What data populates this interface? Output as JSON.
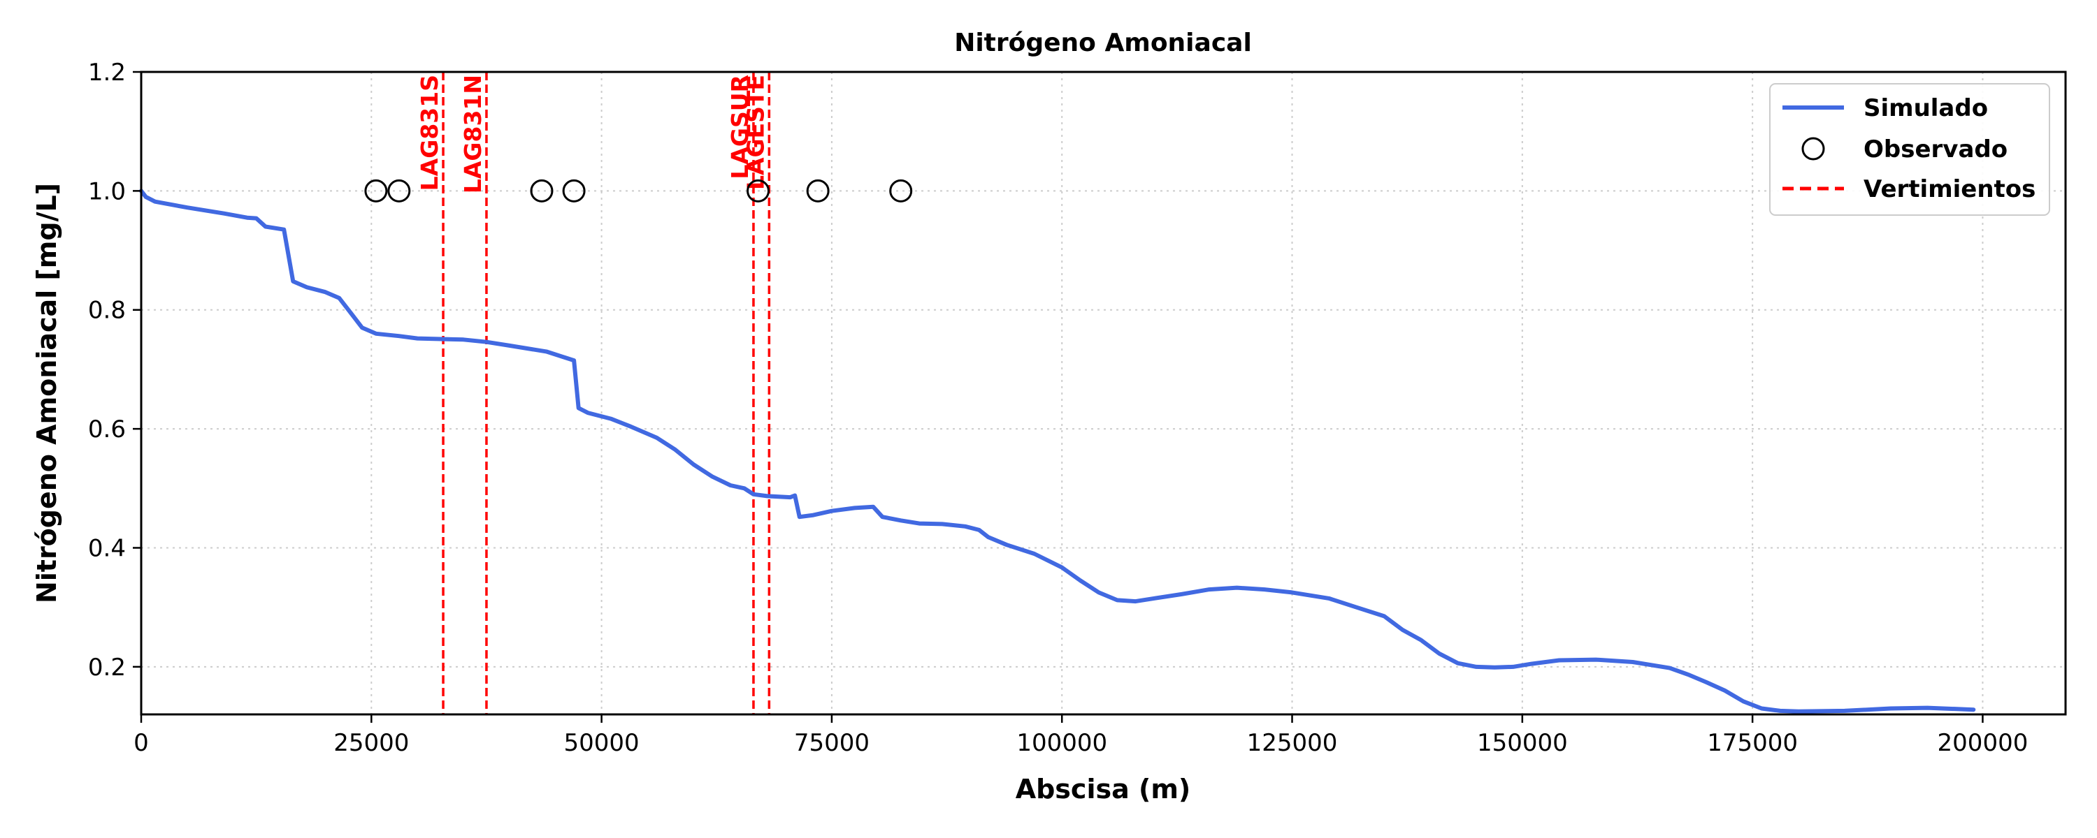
{
  "chart_data": {
    "type": "line",
    "title": "Nitrógeno Amoniacal",
    "xlabel": "Abscisa (m)",
    "ylabel": "Nitrógeno Amoniacal [mg/L]",
    "xlim": [
      0,
      209000
    ],
    "ylim": [
      0.12,
      1.2
    ],
    "xticks": [
      0,
      25000,
      50000,
      75000,
      100000,
      125000,
      150000,
      175000,
      200000
    ],
    "xtick_labels": [
      "0",
      "25000",
      "50000",
      "75000",
      "100000",
      "125000",
      "150000",
      "175000",
      "200000"
    ],
    "yticks": [
      0.2,
      0.4,
      0.6,
      0.8,
      1.0,
      1.2
    ],
    "ytick_labels": [
      "0.2",
      "0.4",
      "0.6",
      "0.8",
      "1.0",
      "1.2"
    ],
    "grid": true,
    "legend_position": "top-right",
    "series": [
      {
        "name": "Simulado",
        "kind": "line",
        "color": "#4169e1",
        "x": [
          0,
          500,
          1500,
          5000,
          9000,
          11500,
          12500,
          13500,
          15500,
          16500,
          18000,
          20000,
          21500,
          22500,
          24000,
          25500,
          28000,
          30000,
          35000,
          37500,
          40000,
          44000,
          46000,
          47000,
          47500,
          48500,
          51000,
          53000,
          56000,
          58000,
          60000,
          62000,
          64000,
          65500,
          66500,
          68000,
          70500,
          71000,
          71500,
          73000,
          75000,
          77500,
          79500,
          80500,
          82500,
          84500,
          87000,
          89500,
          91000,
          92000,
          94000,
          97000,
          100000,
          102000,
          104000,
          106000,
          108000,
          110000,
          113000,
          116000,
          119000,
          122000,
          125000,
          129000,
          132000,
          135000,
          137000,
          139000,
          141000,
          143000,
          145000,
          147000,
          149000,
          151000,
          154000,
          158000,
          162000,
          166000,
          168000,
          170000,
          172000,
          174000,
          176000,
          178000,
          180000,
          185000,
          190000,
          194000,
          199000
        ],
        "y": [
          1.0,
          0.99,
          0.982,
          0.972,
          0.962,
          0.955,
          0.954,
          0.94,
          0.935,
          0.848,
          0.838,
          0.83,
          0.82,
          0.8,
          0.77,
          0.76,
          0.756,
          0.752,
          0.75,
          0.746,
          0.74,
          0.73,
          0.72,
          0.715,
          0.635,
          0.627,
          0.617,
          0.605,
          0.585,
          0.565,
          0.54,
          0.52,
          0.505,
          0.5,
          0.49,
          0.487,
          0.485,
          0.488,
          0.452,
          0.455,
          0.462,
          0.467,
          0.469,
          0.452,
          0.446,
          0.441,
          0.44,
          0.436,
          0.43,
          0.418,
          0.405,
          0.39,
          0.367,
          0.345,
          0.325,
          0.312,
          0.31,
          0.315,
          0.322,
          0.33,
          0.333,
          0.33,
          0.325,
          0.315,
          0.3,
          0.285,
          0.262,
          0.245,
          0.222,
          0.206,
          0.2,
          0.199,
          0.2,
          0.205,
          0.211,
          0.212,
          0.208,
          0.198,
          0.187,
          0.174,
          0.16,
          0.142,
          0.13,
          0.126,
          0.125,
          0.126,
          0.13,
          0.131,
          0.128
        ]
      },
      {
        "name": "Observado",
        "kind": "scatter",
        "marker": "open-circle",
        "color": "#000000",
        "x": [
          25500,
          28000,
          43500,
          47000,
          67000,
          73500,
          82500
        ],
        "y": [
          1.0,
          1.0,
          1.0,
          1.0,
          1.0,
          1.0,
          1.0
        ]
      },
      {
        "name": "Vertimientos",
        "kind": "vline",
        "style": "dashed",
        "color": "#ff0000",
        "lines": [
          {
            "x": 32800,
            "label": "LAG831S"
          },
          {
            "x": 37500,
            "label": "LAG831N"
          },
          {
            "x": 66500,
            "label": "LAGSUR"
          },
          {
            "x": 68200,
            "label": "LAGESTE"
          }
        ]
      }
    ]
  }
}
